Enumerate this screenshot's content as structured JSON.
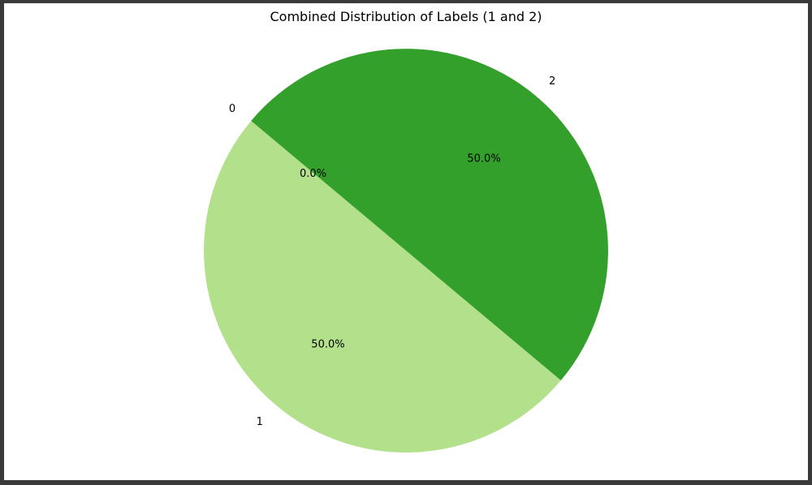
{
  "chart_data": {
    "type": "pie",
    "title": "Combined Distribution of Labels (1 and 2)",
    "labels": [
      "0",
      "1",
      "2"
    ],
    "values": [
      0.0,
      50.0,
      50.0
    ],
    "percent_labels": [
      "0.0%",
      "50.0%",
      "50.0%"
    ],
    "colors": [
      "#e5f5e0",
      "#b3e08b",
      "#34a02c"
    ],
    "start_angle_deg": 140,
    "legend": "none"
  }
}
